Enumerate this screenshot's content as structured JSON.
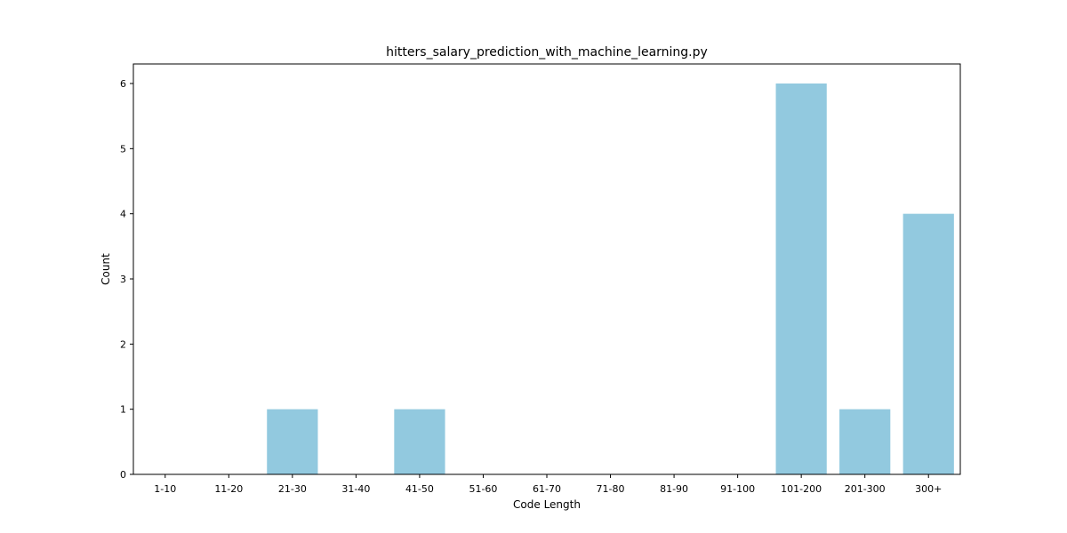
{
  "chart_data": {
    "type": "bar",
    "title": "hitters_salary_prediction_with_machine_learning.py",
    "xlabel": "Code Length",
    "ylabel": "Count",
    "categories": [
      "1-10",
      "11-20",
      "21-30",
      "31-40",
      "41-50",
      "51-60",
      "61-70",
      "71-80",
      "81-90",
      "91-100",
      "101-200",
      "201-300",
      "300+"
    ],
    "values": [
      0,
      0,
      1,
      0,
      1,
      0,
      0,
      0,
      0,
      0,
      6,
      1,
      4
    ],
    "ylim": [
      0,
      6.3
    ],
    "yticks": [
      0,
      1,
      2,
      3,
      4,
      5,
      6
    ],
    "bar_color": "#92c9df",
    "grid": false,
    "legend": "none"
  }
}
